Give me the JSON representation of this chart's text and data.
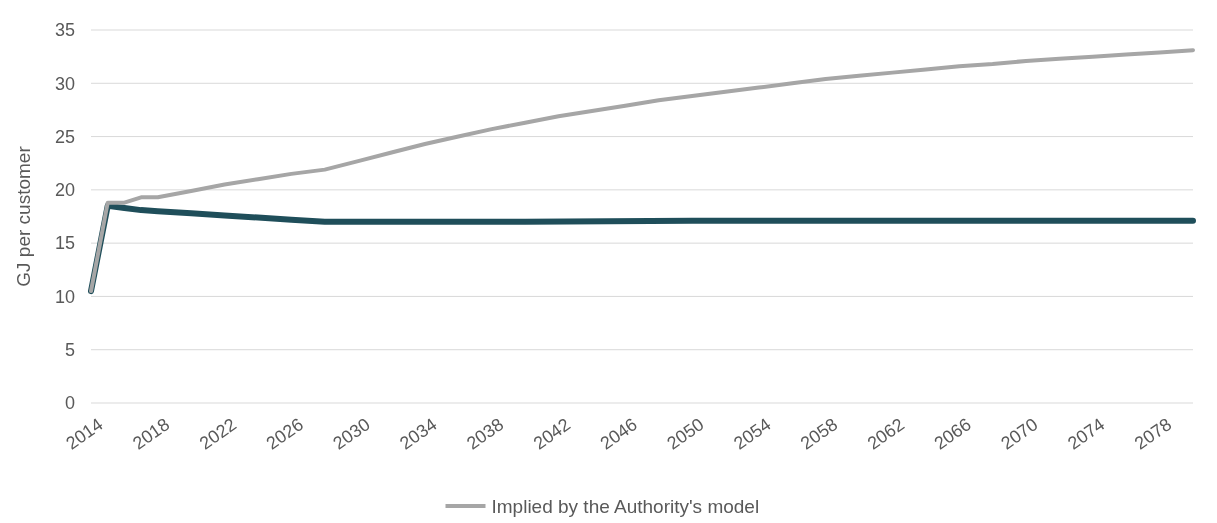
{
  "chart_data": {
    "type": "line",
    "ylabel": "GJ per customer",
    "xlim": [
      2014,
      2080
    ],
    "xticks": [
      2014,
      2018,
      2022,
      2026,
      2030,
      2034,
      2038,
      2042,
      2046,
      2050,
      2054,
      2058,
      2062,
      2066,
      2070,
      2074,
      2078
    ],
    "ylim": [
      0,
      35
    ],
    "yticks": [
      0,
      5,
      10,
      15,
      20,
      25,
      30,
      35
    ],
    "grid": "y",
    "legend": "bottom",
    "line_style": "solid",
    "series": [
      {
        "color": "#1f4e5a",
        "x": [
          2014,
          2015,
          2016,
          2017,
          2018,
          2020,
          2022,
          2024,
          2026,
          2028,
          2030,
          2040,
          2050,
          2060,
          2070,
          2080
        ],
        "values": [
          10.5,
          18.5,
          18.3,
          18.1,
          18.0,
          17.8,
          17.6,
          17.4,
          17.2,
          17.0,
          17.0,
          17.0,
          17.1,
          17.1,
          17.1,
          17.1
        ]
      },
      {
        "name": "Implied by the Authority's model",
        "color": "#a6a6a6",
        "x": [
          2014,
          2015,
          2016,
          2017,
          2018,
          2020,
          2022,
          2024,
          2026,
          2028,
          2030,
          2032,
          2034,
          2036,
          2038,
          2040,
          2042,
          2044,
          2046,
          2048,
          2050,
          2052,
          2054,
          2056,
          2058,
          2060,
          2062,
          2064,
          2066,
          2068,
          2070,
          2072,
          2074,
          2076,
          2078,
          2080
        ],
        "values": [
          10.5,
          18.8,
          18.8,
          19.3,
          19.3,
          19.9,
          20.5,
          21.0,
          21.5,
          21.9,
          22.7,
          23.5,
          24.3,
          25.0,
          25.7,
          26.3,
          26.9,
          27.4,
          27.9,
          28.4,
          28.8,
          29.2,
          29.6,
          30.0,
          30.4,
          30.7,
          31.0,
          31.3,
          31.6,
          31.8,
          32.1,
          32.3,
          32.5,
          32.7,
          32.9,
          33.1
        ]
      }
    ]
  }
}
